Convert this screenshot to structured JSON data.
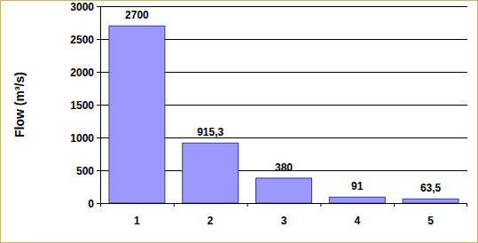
{
  "chart_data": {
    "type": "bar",
    "y_label": "Flow (m³/s)",
    "categories": [
      "1",
      "2",
      "3",
      "4",
      "5"
    ],
    "values": [
      2700,
      915.3,
      380,
      91,
      63.5
    ],
    "value_labels": [
      "2700",
      "915,3",
      "380",
      "91",
      "63,5"
    ],
    "color": "#9999ff",
    "ylim": [
      0,
      3000
    ],
    "yticks": [
      0,
      500,
      1000,
      1500,
      2000,
      2500,
      3000
    ],
    "grid": true,
    "data_labels": true
  }
}
